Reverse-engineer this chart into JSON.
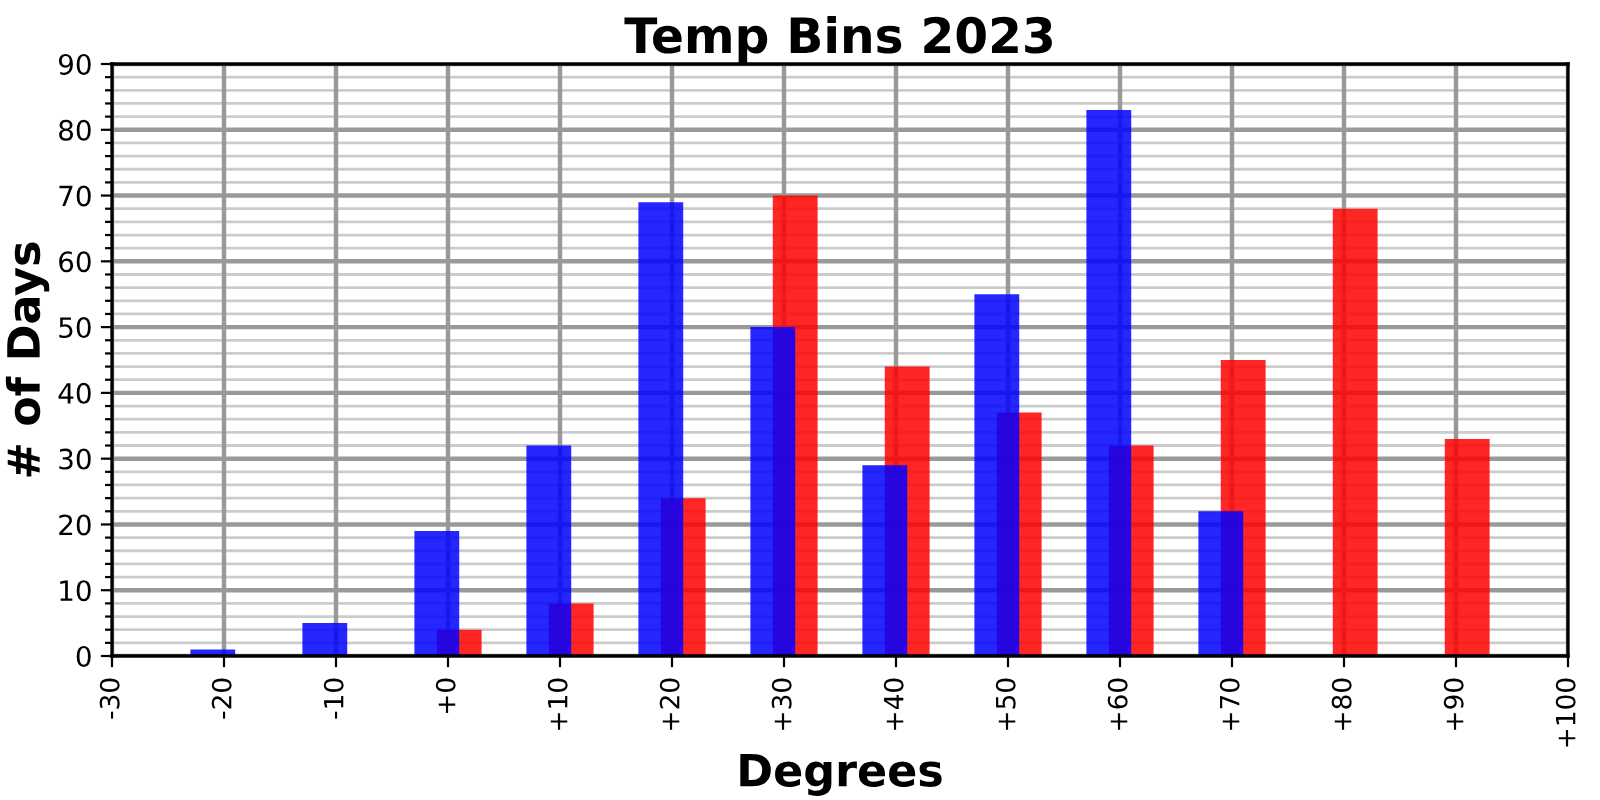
{
  "chart_data": {
    "type": "bar",
    "title": "Temp Bins 2023",
    "xlabel": "Degrees",
    "ylabel": "# of Days",
    "x": [
      -20,
      -10,
      0,
      10,
      20,
      30,
      40,
      50,
      60,
      70,
      80,
      90
    ],
    "series": [
      {
        "color": "#0000ff",
        "values": [
          1,
          5,
          19,
          32,
          69,
          50,
          29,
          55,
          83,
          22,
          null,
          null
        ]
      },
      {
        "color": "#ff0000",
        "values": [
          null,
          null,
          4,
          8,
          24,
          70,
          44,
          37,
          32,
          45,
          68,
          33
        ]
      }
    ],
    "xlim": [
      -30,
      100
    ],
    "xticks": [
      -30,
      -20,
      -10,
      {
        "value": 0,
        "label": "+0"
      },
      {
        "value": 10,
        "label": "+10"
      },
      {
        "value": 20,
        "label": "+20"
      },
      {
        "value": 30,
        "label": "+30"
      },
      {
        "value": 40,
        "label": "+40"
      },
      {
        "value": 50,
        "label": "+50"
      },
      {
        "value": 60,
        "label": "+60"
      },
      {
        "value": 70,
        "label": "+70"
      },
      {
        "value": 80,
        "label": "+80"
      },
      {
        "value": 90,
        "label": "+90"
      },
      {
        "value": 100,
        "label": "+100"
      }
    ],
    "ylim": [
      0,
      90
    ],
    "yticks": [
      0,
      {
        "value": 2,
        "label": null
      },
      {
        "value": 4,
        "label": null
      },
      {
        "value": 6,
        "label": null
      },
      {
        "value": 8,
        "label": null
      },
      10,
      {
        "value": 12,
        "label": null
      },
      {
        "value": 14,
        "label": null
      },
      {
        "value": 16,
        "label": null
      },
      {
        "value": 18,
        "label": null
      },
      20,
      {
        "value": 22,
        "label": null
      },
      {
        "value": 24,
        "label": null
      },
      {
        "value": 26,
        "label": null
      },
      {
        "value": 28,
        "label": null
      },
      30,
      {
        "value": 32,
        "label": null
      },
      {
        "value": 34,
        "label": null
      },
      {
        "value": 36,
        "label": null
      },
      {
        "value": 38,
        "label": null
      },
      40,
      {
        "value": 42,
        "label": null
      },
      {
        "value": 44,
        "label": null
      },
      {
        "value": 46,
        "label": null
      },
      {
        "value": 48,
        "label": null
      },
      50,
      {
        "value": 52,
        "label": null
      },
      {
        "value": 54,
        "label": null
      },
      {
        "value": 56,
        "label": null
      },
      {
        "value": 58,
        "label": null
      },
      60,
      {
        "value": 62,
        "label": null
      },
      {
        "value": 64,
        "label": null
      },
      {
        "value": 66,
        "label": null
      },
      {
        "value": 68,
        "label": null
      },
      70,
      {
        "value": 72,
        "label": null
      },
      {
        "value": 74,
        "label": null
      },
      {
        "value": 76,
        "label": null
      },
      {
        "value": 78,
        "label": null
      },
      80,
      {
        "value": 82,
        "label": null
      },
      {
        "value": 84,
        "label": null
      },
      {
        "value": 86,
        "label": null
      },
      {
        "value": 88,
        "label": null
      },
      90
    ],
    "grid": true
  }
}
